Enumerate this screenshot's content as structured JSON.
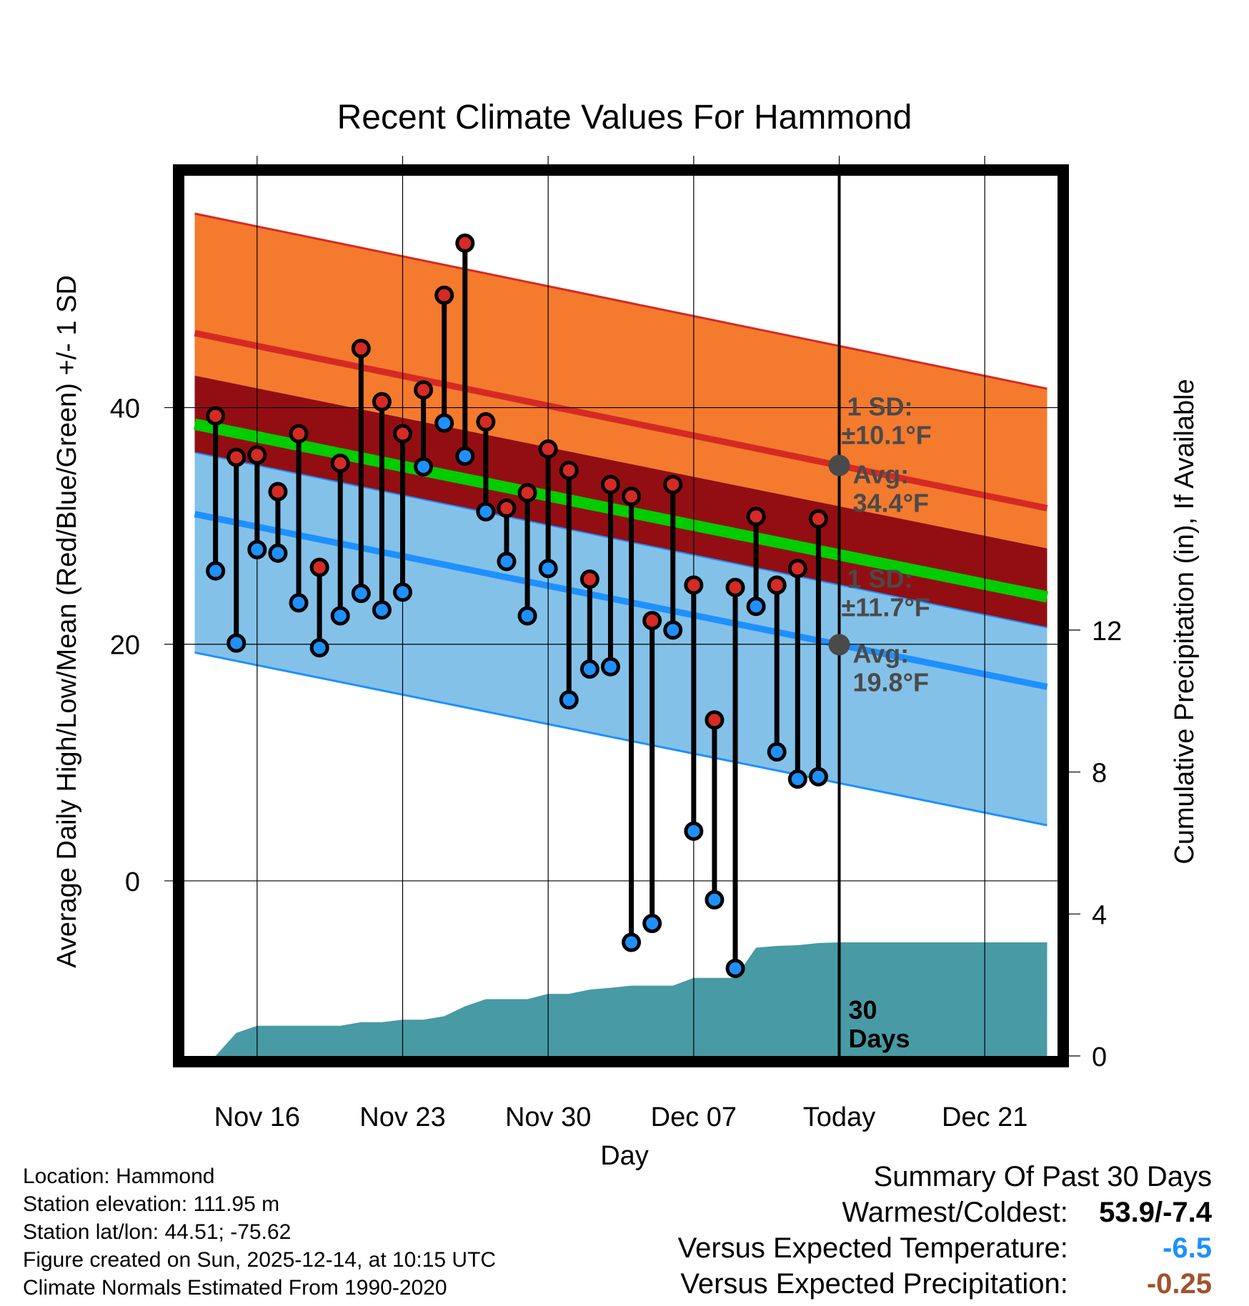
{
  "chart_data": {
    "type": "line",
    "title": "Recent Climate Values For Hammond",
    "xlabel": "Day",
    "ylabel": "Average Daily High/Low/Mean (Red/Blue/Green) +/- 1 SD",
    "ylabel_right": "Cumulative Precipitation (in), If Available",
    "ylim": [
      -14.8,
      59.6
    ],
    "ylim_right": [
      0,
      24.8
    ],
    "xlim": [
      -3.5,
      38.5
    ],
    "y_ticks_major": [
      "40",
      "20",
      "0"
    ],
    "y_ticks_major_values": [
      40,
      20,
      0
    ],
    "y_ticks_minor_values": [
      50,
      30,
      10,
      -10
    ],
    "y_right_ticks": [
      "12",
      "8",
      "4",
      "0"
    ],
    "y_right_ticks_values": [
      12,
      8,
      4,
      0
    ],
    "x_ticks": [
      "Nov 16",
      "Nov 23",
      "Nov 30",
      "Dec 07",
      "Today",
      "Dec 21"
    ],
    "x_ticks_values": [
      0,
      7,
      14,
      21,
      28,
      35
    ],
    "today_index": 28,
    "grid": true,
    "days": [
      -2,
      -1,
      0,
      1,
      2,
      3,
      4,
      5,
      6,
      7,
      8,
      9,
      10,
      11,
      12,
      13,
      14,
      15,
      16,
      17,
      18,
      19,
      20,
      21,
      22,
      23,
      24,
      25,
      26,
      27
    ],
    "daily_high": [
      39.3,
      35.8,
      36.0,
      32.9,
      37.8,
      26.5,
      35.3,
      45.0,
      40.5,
      37.8,
      41.5,
      49.5,
      53.9,
      38.8,
      31.5,
      32.8,
      36.5,
      34.7,
      25.5,
      33.5,
      32.5,
      22.0,
      33.5,
      25.0,
      13.6,
      24.8,
      30.8,
      25.0,
      26.4,
      30.6
    ],
    "daily_low": [
      26.2,
      20.1,
      28.0,
      27.7,
      23.5,
      19.7,
      22.4,
      24.3,
      22.9,
      24.4,
      35.0,
      38.7,
      35.9,
      31.2,
      27.0,
      22.4,
      26.4,
      15.3,
      17.9,
      18.1,
      -5.2,
      -3.6,
      21.2,
      4.2,
      -1.6,
      -7.4,
      23.2,
      10.9,
      8.6,
      8.8
    ],
    "normal_high": {
      "x": [
        -3,
        38
      ],
      "values": [
        46.3,
        31.5
      ],
      "sd": 10.1
    },
    "normal_low": {
      "x": [
        -3,
        38
      ],
      "values": [
        31.0,
        16.4
      ],
      "sd": 11.7
    },
    "normal_mean": {
      "x": [
        -3,
        38
      ],
      "values": [
        38.6,
        24.0
      ]
    },
    "precip_cumulative": {
      "x": [
        -3,
        -2,
        -1,
        0,
        1,
        2,
        3,
        4,
        5,
        6,
        7,
        8,
        9,
        10,
        11,
        12,
        13,
        14,
        15,
        16,
        17,
        18,
        19,
        20,
        21,
        22,
        23,
        24,
        25,
        26,
        27,
        28,
        38
      ],
      "values": [
        0,
        0,
        0.65,
        0.85,
        0.85,
        0.85,
        0.85,
        0.85,
        0.95,
        0.95,
        1.02,
        1.02,
        1.12,
        1.4,
        1.6,
        1.6,
        1.6,
        1.75,
        1.75,
        1.87,
        1.92,
        1.98,
        1.98,
        1.98,
        2.2,
        2.2,
        2.2,
        3.05,
        3.1,
        3.12,
        3.18,
        3.2,
        3.2
      ]
    },
    "annotations": {
      "high_sd": "1 SD:",
      "high_sd_val": "±10.1°F",
      "high_avg": "Avg:",
      "high_avg_val": "34.4°F",
      "low_sd": "1 SD:",
      "low_sd_val": "±11.7°F",
      "low_avg": "Avg:",
      "low_avg_val": "19.8°F",
      "days_num": "30",
      "days_word": "Days"
    },
    "colors": {
      "high_band": "#f47a2e",
      "high_line": "#d52a24",
      "overlap_band": "#930e12",
      "mean_line": "#00cc00",
      "low_band": "#84c1e8",
      "low_line": "#1e90ff",
      "precip": "#489aa4",
      "high_marker": "#d62a25",
      "low_marker": "#1e90ff",
      "annotation": "#4a4a4a"
    }
  },
  "footer": {
    "location": "Location: Hammond",
    "elevation": "Station elevation: 111.95 m",
    "latlon": "Station lat/lon: 44.51; -75.62",
    "created": "Figure created on Sun, 2025-12-14, at 10:15 UTC",
    "normals": "Climate Normals Estimated From 1990-2020"
  },
  "summary": {
    "title": "Summary Of Past 30 Days",
    "warm_cold_label": "Warmest/Coldest:",
    "warm_cold_value": "53.9/-7.4",
    "temp_label": "Versus Expected Temperature:",
    "temp_value": "-6.5",
    "temp_color": "#1e90ff",
    "precip_label": "Versus Expected Precipitation:",
    "precip_value": "-0.25",
    "precip_color": "#a0522d"
  }
}
